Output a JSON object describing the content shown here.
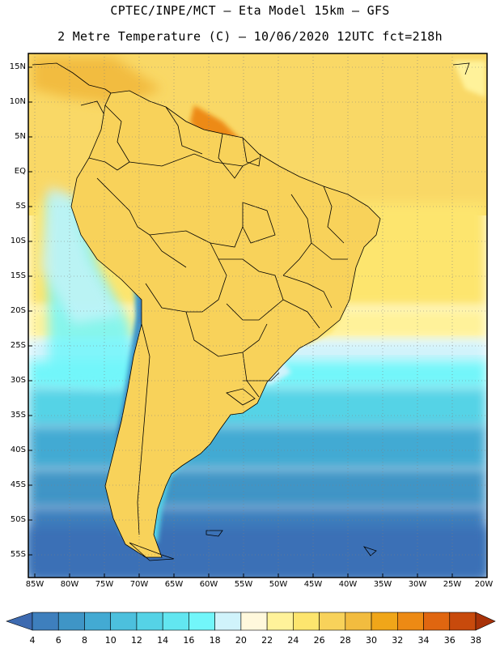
{
  "title": {
    "line1": "CPTEC/INPE/MCT –  Eta Model 15km – GFS",
    "line2": "2 Metre Temperature (C) – 10/06/2020 12UTC fct=218h"
  },
  "map": {
    "lat_labels": [
      "15N",
      "10N",
      "5N",
      "EQ",
      "5S",
      "10S",
      "15S",
      "20S",
      "25S",
      "30S",
      "35S",
      "40S",
      "45S",
      "50S",
      "55S"
    ],
    "lon_labels": [
      "85W",
      "80W",
      "75W",
      "70W",
      "65W",
      "60W",
      "55W",
      "50W",
      "45W",
      "40W",
      "35W",
      "30W",
      "25W",
      "20W"
    ],
    "lat_range": [
      17,
      -58
    ],
    "lon_range": [
      -85.5,
      -20.5
    ]
  },
  "colorbar": {
    "values": [
      "4",
      "6",
      "8",
      "10",
      "12",
      "14",
      "16",
      "18",
      "20",
      "22",
      "24",
      "26",
      "28",
      "30",
      "32",
      "34",
      "36",
      "38"
    ],
    "colors": [
      "#3d6ab0",
      "#3e7fbd",
      "#3f95c6",
      "#43aad3",
      "#4cc0dd",
      "#55d3e6",
      "#62e6f0",
      "#72f6fa",
      "#d0f3fb",
      "#fff8dc",
      "#fff29a",
      "#fde56e",
      "#f8d25a",
      "#f2bc3f",
      "#f0a619",
      "#ed8a14",
      "#e06610",
      "#c84a0c",
      "#a83208"
    ]
  }
}
